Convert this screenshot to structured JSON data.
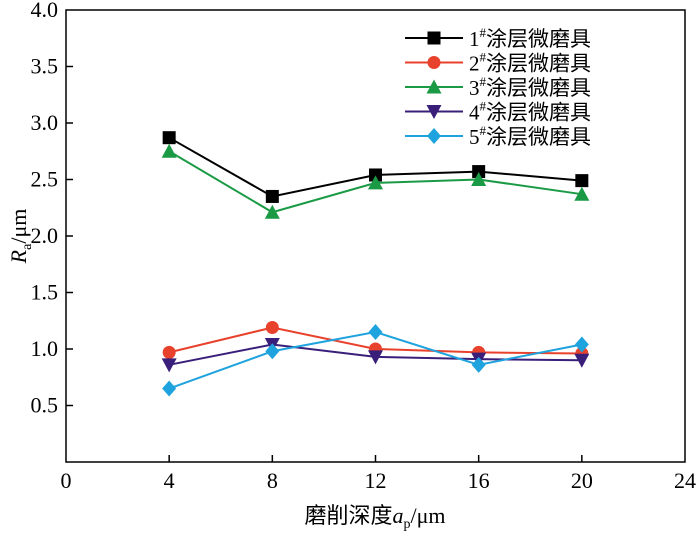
{
  "chart_data": {
    "type": "line",
    "xlabel_main": "磨削深度",
    "xlabel_var": "a",
    "xlabel_sub": "p",
    "xlabel_unit": "/μm",
    "ylabel_var": "R",
    "ylabel_sub": "a",
    "ylabel_unit": "/μm",
    "xlim": [
      0,
      24
    ],
    "ylim": [
      0.0,
      4.0
    ],
    "xticks": [
      0,
      4,
      8,
      12,
      16,
      20,
      24
    ],
    "yticks": [
      0.5,
      1.0,
      1.5,
      2.0,
      2.5,
      3.0,
      3.5,
      4.0
    ],
    "ytick_labels": [
      "0.5",
      "1.0",
      "1.5",
      "2.0",
      "2.5",
      "3.0",
      "3.5",
      "4.0"
    ],
    "legend_position": "top-right",
    "x": [
      4,
      8,
      12,
      16,
      20
    ],
    "series": [
      {
        "name_num": "1",
        "name_sup": "#",
        "name_text": "涂层微磨具",
        "color": "#000000",
        "marker": "square",
        "values": [
          2.87,
          2.35,
          2.54,
          2.57,
          2.49
        ]
      },
      {
        "name_num": "2",
        "name_sup": "#",
        "name_text": "涂层微磨具",
        "color": "#e8412c",
        "marker": "circle",
        "values": [
          0.97,
          1.19,
          1.0,
          0.97,
          0.96
        ]
      },
      {
        "name_num": "3",
        "name_sup": "#",
        "name_text": "涂层微磨具",
        "color": "#1a9a45",
        "marker": "triangle-up",
        "values": [
          2.75,
          2.21,
          2.47,
          2.5,
          2.37
        ]
      },
      {
        "name_num": "4",
        "name_sup": "#",
        "name_text": "涂层微磨具",
        "color": "#3a1f7a",
        "marker": "triangle-down",
        "values": [
          0.86,
          1.04,
          0.93,
          0.91,
          0.9
        ]
      },
      {
        "name_num": "5",
        "name_sup": "#",
        "name_text": "涂层微磨具",
        "color": "#1fa3de",
        "marker": "diamond",
        "values": [
          0.65,
          0.98,
          1.15,
          0.86,
          1.04
        ]
      }
    ]
  }
}
